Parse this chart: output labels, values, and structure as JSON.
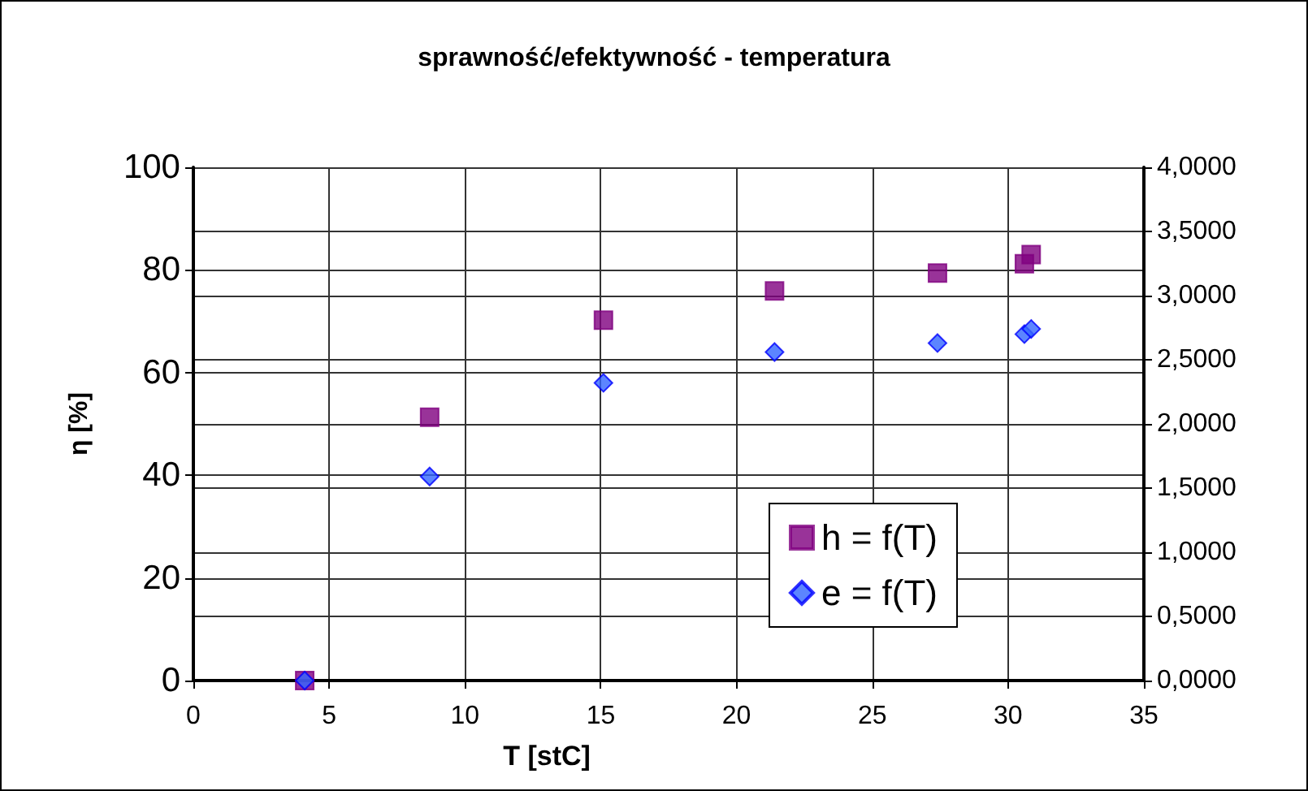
{
  "chart_data": {
    "type": "scatter",
    "title": "sprawność/efektywność - temperatura",
    "xlabel": "T [stC]",
    "ylabel": "η [%]",
    "x": [
      4.1,
      8.7,
      15.1,
      21.4,
      27.4,
      30.6,
      30.85
    ],
    "series": [
      {
        "name": "h = f(T)",
        "color": "#800080",
        "marker": "square",
        "values": [
          0,
          51.3,
          70.2,
          75.9,
          79.4,
          81.2,
          83.0
        ]
      },
      {
        "name": "e = f(T)",
        "color": "#3366ff",
        "marker": "diamond",
        "axis": "y2",
        "values": [
          0,
          1.59,
          2.32,
          2.56,
          2.63,
          2.7,
          2.74
        ]
      }
    ],
    "xlim": [
      0,
      35
    ],
    "xticks": [
      0,
      5,
      10,
      15,
      20,
      25,
      30,
      35
    ],
    "ylim": [
      0,
      100
    ],
    "yticks": [
      0,
      20,
      40,
      60,
      80,
      100
    ],
    "y2lim": [
      0,
      4
    ],
    "y2ticks": [
      {
        "value": 0,
        "label": "0,0000"
      },
      {
        "value": 0.5,
        "label": "0,5000"
      },
      {
        "value": 1,
        "label": "1,0000"
      },
      {
        "value": 1.5,
        "label": "1,5000"
      },
      {
        "value": 2,
        "label": "2,0000"
      },
      {
        "value": 2.5,
        "label": "2,5000"
      },
      {
        "value": 3,
        "label": "3,0000"
      },
      {
        "value": 3.5,
        "label": "3,5000"
      },
      {
        "value": 4,
        "label": "4,0000"
      }
    ],
    "grid": true,
    "legend": "bottom right"
  }
}
